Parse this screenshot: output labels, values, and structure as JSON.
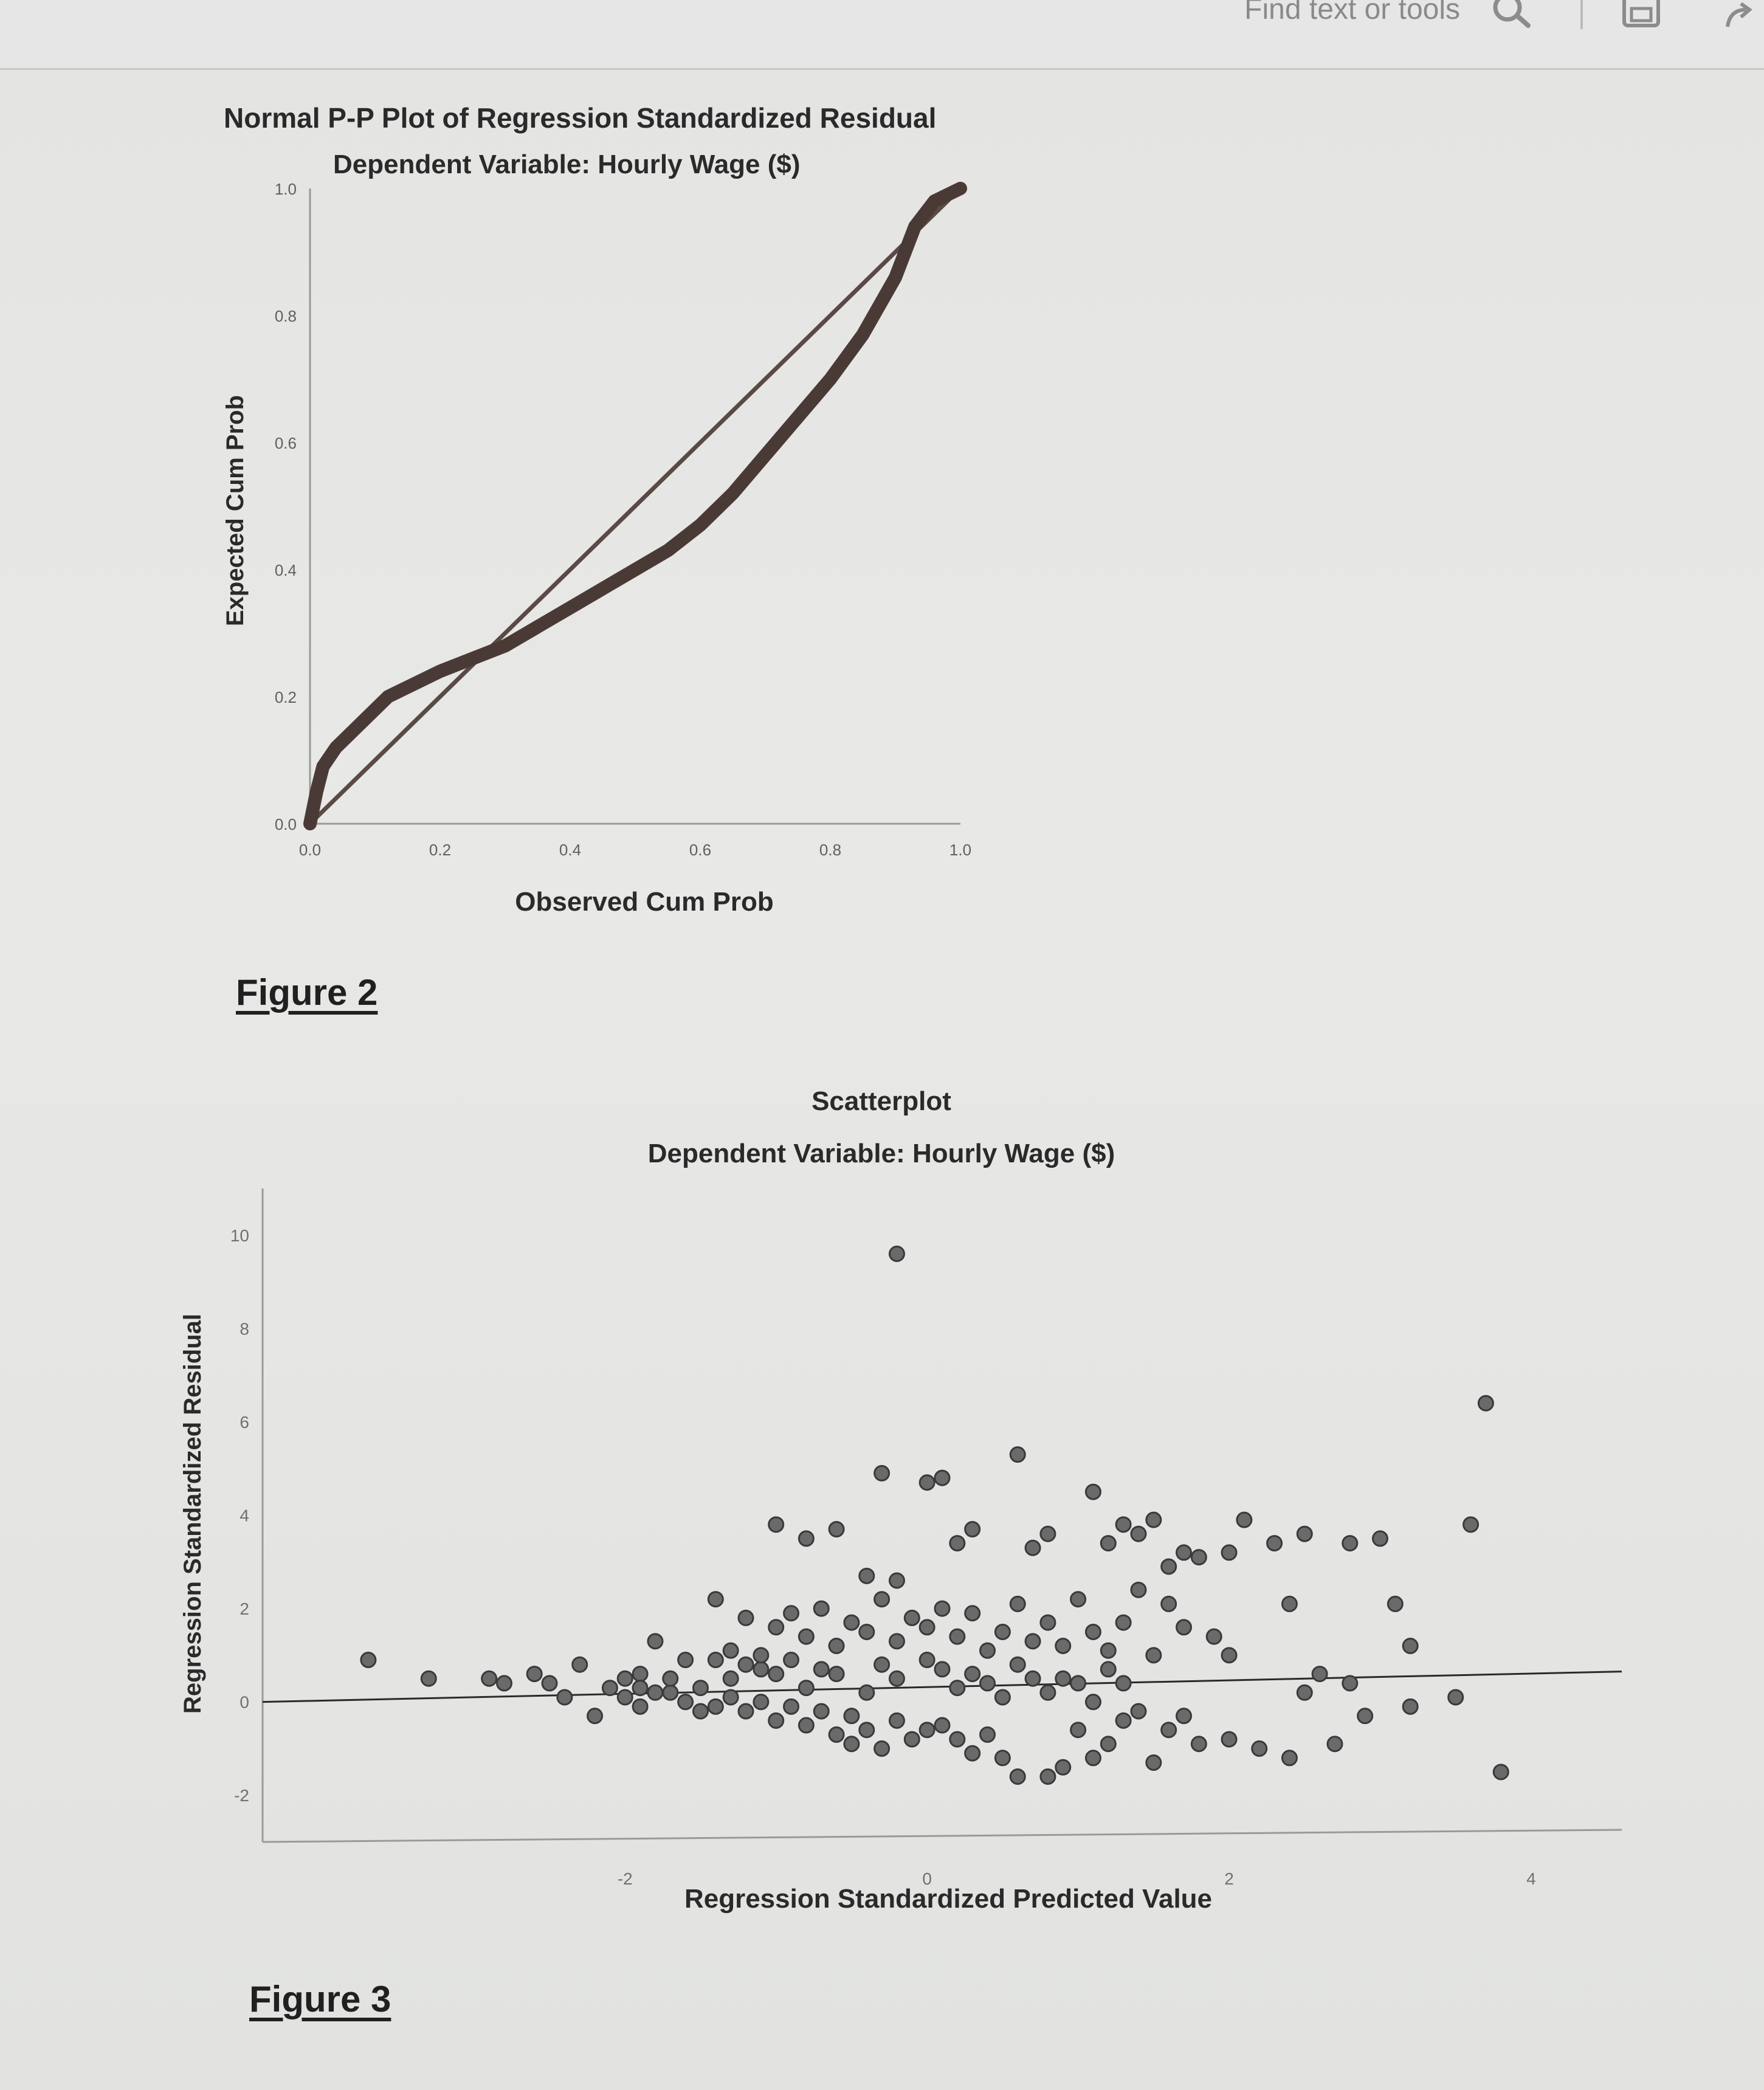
{
  "toolbar": {
    "find_placeholder": "Find text or tools",
    "icons": [
      "search-icon",
      "save-icon",
      "share-icon"
    ]
  },
  "figures": {
    "figure2_label": "Figure 2",
    "figure3_label": "Figure 3"
  },
  "chart_data": [
    {
      "type": "line",
      "title": "Normal P-P Plot of Regression Standardized Residual",
      "subtitle": "Dependent Variable: Hourly Wage ($)",
      "xlabel": "Observed Cum Prob",
      "ylabel": "Expected Cum Prob",
      "xlim": [
        0,
        1
      ],
      "ylim": [
        0,
        1
      ],
      "xticks": [
        "0.0",
        "0.2",
        "0.4",
        "0.6",
        "0.8",
        "1.0"
      ],
      "yticks": [
        "0.0",
        "0.2",
        "0.4",
        "0.6",
        "0.8",
        "1.0"
      ],
      "reference_line": [
        [
          0,
          0
        ],
        [
          1,
          1
        ]
      ],
      "x": [
        0.0,
        0.01,
        0.02,
        0.04,
        0.06,
        0.09,
        0.12,
        0.16,
        0.2,
        0.25,
        0.3,
        0.35,
        0.4,
        0.45,
        0.5,
        0.55,
        0.6,
        0.65,
        0.7,
        0.75,
        0.8,
        0.85,
        0.9,
        0.93,
        0.96,
        1.0
      ],
      "y": [
        0.0,
        0.05,
        0.09,
        0.12,
        0.14,
        0.17,
        0.2,
        0.22,
        0.24,
        0.26,
        0.28,
        0.31,
        0.34,
        0.37,
        0.4,
        0.43,
        0.47,
        0.52,
        0.58,
        0.64,
        0.7,
        0.77,
        0.86,
        0.94,
        0.98,
        1.0
      ],
      "grid": false
    },
    {
      "type": "scatter",
      "title": "Scatterplot",
      "subtitle": "Dependent Variable: Hourly Wage ($)",
      "xlabel": "Regression Standardized Predicted Value",
      "ylabel": "Regression Standardized Residual",
      "xlim": [
        -4.4,
        4.6
      ],
      "ylim": [
        -3,
        11
      ],
      "xticks": [
        "-2",
        "0",
        "2",
        "4"
      ],
      "yticks": [
        "-2",
        "0",
        "2",
        "4",
        "6",
        "8",
        "10"
      ],
      "reference_line_y": 0,
      "grid": false,
      "points": [
        [
          -3.7,
          0.9
        ],
        [
          -3.3,
          0.5
        ],
        [
          -2.9,
          0.5
        ],
        [
          -2.8,
          0.4
        ],
        [
          -2.6,
          0.6
        ],
        [
          -2.5,
          0.4
        ],
        [
          -2.4,
          0.1
        ],
        [
          -2.3,
          0.8
        ],
        [
          -2.2,
          -0.3
        ],
        [
          -2.1,
          0.3
        ],
        [
          -1.9,
          0.6
        ],
        [
          -1.9,
          -0.1
        ],
        [
          -1.8,
          1.3
        ],
        [
          -1.7,
          0.2
        ],
        [
          -1.6,
          0.9
        ],
        [
          -1.5,
          -0.2
        ],
        [
          -1.4,
          2.2
        ],
        [
          -1.3,
          1.1
        ],
        [
          -1.2,
          1.8
        ],
        [
          -1.1,
          0.7
        ],
        [
          -1.0,
          3.8
        ],
        [
          -0.8,
          3.5
        ],
        [
          -0.6,
          3.7
        ],
        [
          -0.3,
          4.9
        ],
        [
          -0.4,
          2.7
        ],
        [
          0.0,
          4.7
        ],
        [
          -0.2,
          2.6
        ],
        [
          0.1,
          4.8
        ],
        [
          0.2,
          3.4
        ],
        [
          0.3,
          3.7
        ],
        [
          -0.2,
          9.6
        ],
        [
          0.6,
          5.3
        ],
        [
          0.7,
          3.3
        ],
        [
          0.8,
          3.6
        ],
        [
          1.1,
          4.5
        ],
        [
          1.2,
          3.4
        ],
        [
          1.3,
          3.8
        ],
        [
          1.4,
          3.6
        ],
        [
          1.5,
          3.9
        ],
        [
          1.6,
          2.9
        ],
        [
          1.7,
          3.2
        ],
        [
          1.8,
          3.1
        ],
        [
          2.0,
          3.2
        ],
        [
          2.1,
          3.9
        ],
        [
          2.3,
          3.4
        ],
        [
          2.5,
          3.6
        ],
        [
          2.8,
          3.4
        ],
        [
          3.0,
          3.5
        ],
        [
          3.6,
          3.8
        ],
        [
          3.7,
          6.4
        ],
        [
          3.1,
          2.1
        ],
        [
          3.2,
          1.2
        ],
        [
          2.4,
          2.1
        ],
        [
          1.9,
          1.4
        ],
        [
          2.0,
          1.0
        ],
        [
          1.7,
          1.6
        ],
        [
          1.6,
          2.1
        ],
        [
          1.5,
          1.0
        ],
        [
          1.4,
          2.4
        ],
        [
          1.3,
          1.7
        ],
        [
          2.5,
          0.2
        ],
        [
          2.6,
          0.6
        ],
        [
          2.8,
          0.4
        ],
        [
          2.9,
          -0.3
        ],
        [
          3.2,
          -0.1
        ],
        [
          3.5,
          0.1
        ],
        [
          3.8,
          -1.5
        ],
        [
          2.7,
          -0.9
        ],
        [
          2.4,
          -1.2
        ],
        [
          2.2,
          -1.0
        ],
        [
          2.0,
          -0.8
        ],
        [
          1.8,
          -0.9
        ],
        [
          1.7,
          -0.3
        ],
        [
          1.6,
          -0.6
        ],
        [
          1.5,
          -1.3
        ],
        [
          1.4,
          -0.2
        ],
        [
          1.3,
          0.4
        ],
        [
          1.2,
          -0.9
        ],
        [
          1.1,
          -1.2
        ],
        [
          1.0,
          -0.6
        ],
        [
          0.9,
          -1.4
        ],
        [
          0.8,
          -1.6
        ],
        [
          0.6,
          -1.6
        ],
        [
          0.5,
          -1.2
        ],
        [
          0.4,
          -0.7
        ],
        [
          0.3,
          -1.1
        ],
        [
          0.2,
          -0.8
        ],
        [
          0.1,
          -0.5
        ],
        [
          0.0,
          -0.6
        ],
        [
          -0.1,
          -0.8
        ],
        [
          -0.2,
          -0.4
        ],
        [
          -0.3,
          -1.0
        ],
        [
          -0.4,
          -0.6
        ],
        [
          -0.5,
          -0.3
        ],
        [
          -0.6,
          -0.7
        ],
        [
          -0.7,
          -0.2
        ],
        [
          -0.8,
          -0.5
        ],
        [
          -0.9,
          -0.1
        ],
        [
          -1.0,
          -0.4
        ],
        [
          -1.1,
          0.0
        ],
        [
          -1.2,
          -0.2
        ],
        [
          -1.3,
          0.1
        ],
        [
          -1.4,
          -0.1
        ],
        [
          -1.5,
          0.3
        ],
        [
          -1.6,
          0.0
        ],
        [
          -1.7,
          0.5
        ],
        [
          -1.8,
          0.2
        ],
        [
          -1.9,
          0.3
        ],
        [
          -2.0,
          0.1
        ],
        [
          -2.0,
          0.5
        ],
        [
          -1.0,
          1.6
        ],
        [
          -0.9,
          1.9
        ],
        [
          -0.8,
          1.4
        ],
        [
          -0.7,
          2.0
        ],
        [
          -0.6,
          1.2
        ],
        [
          -0.5,
          1.7
        ],
        [
          -0.4,
          1.5
        ],
        [
          -0.3,
          2.2
        ],
        [
          -0.2,
          1.3
        ],
        [
          -0.1,
          1.8
        ],
        [
          0.0,
          1.6
        ],
        [
          0.1,
          2.0
        ],
        [
          0.2,
          1.4
        ],
        [
          0.3,
          1.9
        ],
        [
          0.4,
          1.1
        ],
        [
          0.5,
          1.5
        ],
        [
          0.6,
          2.1
        ],
        [
          0.7,
          1.3
        ],
        [
          0.8,
          1.7
        ],
        [
          0.9,
          1.2
        ],
        [
          1.0,
          2.2
        ],
        [
          1.1,
          1.5
        ],
        [
          1.2,
          1.1
        ],
        [
          -1.1,
          1.0
        ],
        [
          -1.2,
          0.8
        ],
        [
          -0.9,
          0.9
        ],
        [
          -0.6,
          0.6
        ],
        [
          -0.3,
          0.8
        ],
        [
          0.0,
          0.9
        ],
        [
          0.3,
          0.6
        ],
        [
          0.6,
          0.8
        ],
        [
          0.9,
          0.5
        ],
        [
          1.2,
          0.7
        ],
        [
          -1.3,
          0.5
        ],
        [
          -0.8,
          0.3
        ],
        [
          -0.4,
          0.2
        ],
        [
          0.2,
          0.3
        ],
        [
          0.5,
          0.1
        ],
        [
          0.8,
          0.2
        ],
        [
          1.1,
          0.0
        ],
        [
          -1.4,
          0.9
        ],
        [
          -1.0,
          0.6
        ],
        [
          -0.7,
          0.7
        ],
        [
          -0.2,
          0.5
        ],
        [
          0.1,
          0.7
        ],
        [
          0.4,
          0.4
        ],
        [
          0.7,
          0.5
        ],
        [
          1.0,
          0.4
        ],
        [
          1.3,
          -0.4
        ],
        [
          -0.5,
          -0.9
        ]
      ]
    }
  ]
}
